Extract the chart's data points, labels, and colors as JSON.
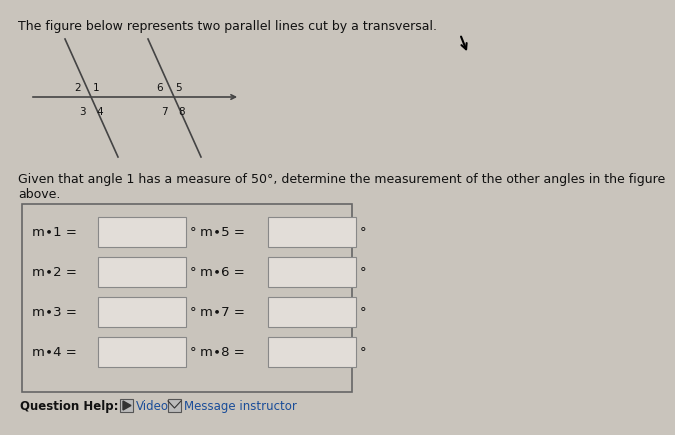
{
  "title_text": "The figure below represents two parallel lines cut by a transversal.",
  "description_text": "Given that angle 1 has a measure of 50°, determine the measurement of the other angles in the figure\nabove.",
  "bg_color": "#c9c4bc",
  "angle_labels_left": [
    "m∙1 =",
    "m∙2 =",
    "m∙3 =",
    "m∙4 ="
  ],
  "angle_labels_right": [
    "m∙5 =",
    "m∙6 =",
    "m∙7 =",
    "m∙8 ="
  ],
  "question_help_text": "Question Help:",
  "video_text": "Video",
  "message_text": "Message instructor",
  "line_color": "#444444",
  "text_color": "#111111",
  "label_fontsize": 9.5,
  "title_fontsize": 9.0,
  "small_num_fontsize": 7.5
}
